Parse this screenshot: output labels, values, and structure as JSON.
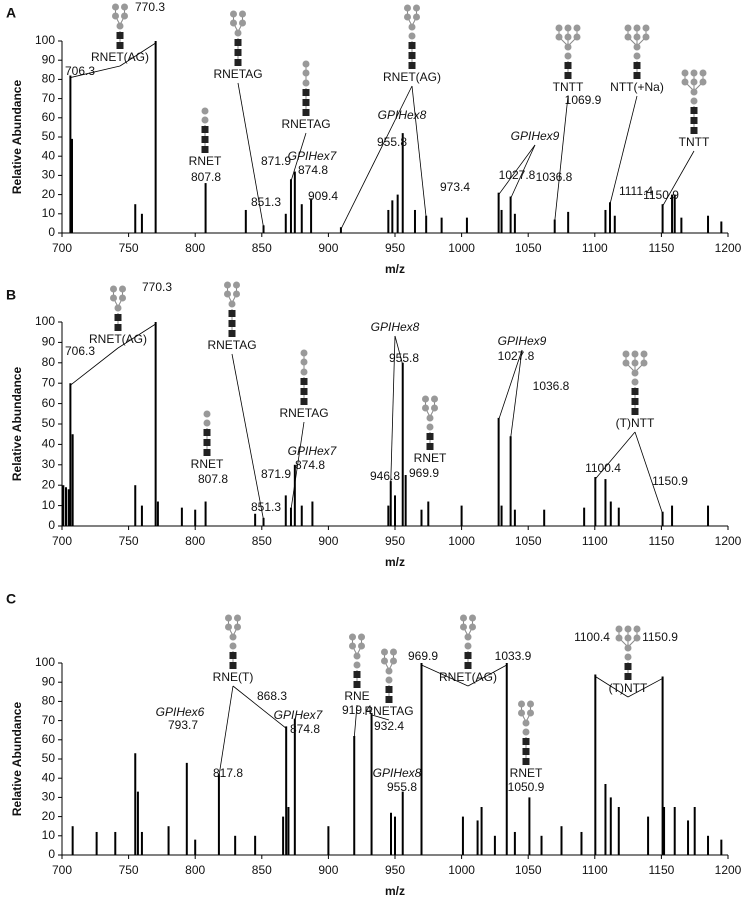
{
  "chart_data": [
    {
      "type": "stem",
      "panel_label": "A",
      "x_label": "m/z",
      "y_label": "Relative Abundance",
      "color": "#000000",
      "xlim": [
        700,
        1200
      ],
      "xticks": [
        700,
        750,
        800,
        850,
        900,
        950,
        1000,
        1050,
        1100,
        1150,
        1200
      ],
      "ylim": [
        0,
        100
      ],
      "yticks": [
        0,
        10,
        20,
        30,
        40,
        50,
        60,
        70,
        80,
        90,
        100
      ],
      "x": [
        706.3,
        770.3,
        807.8,
        851.3,
        871.9,
        874.8,
        909.4,
        955.8,
        973.4,
        1027.8,
        1036.8,
        1069.9,
        1111.4,
        1150.9,
        707.5,
        755,
        760,
        838,
        868,
        880,
        887,
        945,
        948,
        952,
        965,
        985,
        1004,
        1030,
        1040,
        1080,
        1108,
        1115,
        1158,
        1160,
        1165,
        1185,
        1195
      ],
      "values": [
        82,
        100,
        26,
        4,
        28,
        32,
        3,
        52,
        9,
        21,
        19,
        7,
        16,
        15,
        49,
        15,
        10,
        12,
        10,
        15,
        18,
        12,
        17,
        20,
        12,
        8,
        8,
        12,
        10,
        11,
        12,
        9,
        20,
        20,
        8,
        9,
        6
      ],
      "annotations": [
        {
          "text": "RNET(AG)"
        },
        {
          "text": "RNETAG"
        },
        {
          "text": "RNET"
        },
        {
          "text": "RNETAG"
        },
        {
          "text": "GPIHex7",
          "italic": true
        },
        {
          "text": "RNET(AG)"
        },
        {
          "text": "GPIHex8",
          "italic": true
        },
        {
          "text": "GPIHex9",
          "italic": true
        },
        {
          "text": "TNTT"
        },
        {
          "text": "NTT(+Na)"
        },
        {
          "text": "TNTT"
        }
      ]
    },
    {
      "type": "stem",
      "panel_label": "B",
      "x_label": "m/z",
      "y_label": "Relative Abundance",
      "color": "#000000",
      "xlim": [
        700,
        1200
      ],
      "xticks": [
        700,
        750,
        800,
        850,
        900,
        950,
        1000,
        1050,
        1100,
        1150,
        1200
      ],
      "ylim": [
        0,
        100
      ],
      "yticks": [
        0,
        10,
        20,
        30,
        40,
        50,
        60,
        70,
        80,
        90,
        100
      ],
      "x": [
        706.3,
        770.3,
        807.8,
        851.3,
        871.9,
        874.8,
        946.8,
        955.8,
        969.9,
        1027.8,
        1036.8,
        1100.4,
        1150.9,
        701,
        703,
        705,
        708,
        755,
        760,
        772,
        790,
        800,
        845,
        868,
        880,
        888,
        945,
        950,
        958,
        975,
        1000,
        1030,
        1040,
        1062,
        1092,
        1108,
        1112,
        1118,
        1158,
        1185
      ],
      "values": [
        70,
        100,
        12,
        4,
        9,
        30,
        22,
        80,
        8,
        53,
        44,
        24,
        7,
        20,
        19,
        18,
        45,
        20,
        10,
        12,
        9,
        8,
        6,
        15,
        10,
        12,
        10,
        15,
        25,
        12,
        10,
        10,
        8,
        8,
        9,
        23,
        12,
        9,
        10,
        10
      ],
      "annotations": [
        {
          "text": "RNET(AG)"
        },
        {
          "text": "RNETAG"
        },
        {
          "text": "RNET"
        },
        {
          "text": "RNETAG"
        },
        {
          "text": "GPIHex7",
          "italic": true
        },
        {
          "text": "GPIHex8",
          "italic": true
        },
        {
          "text": "RNET"
        },
        {
          "text": "GPIHex9",
          "italic": true
        },
        {
          "text": "(T)NTT"
        }
      ]
    },
    {
      "type": "stem",
      "panel_label": "C",
      "x_label": "m/z",
      "y_label": "Relative Abundance",
      "color": "#000000",
      "xlim": [
        700,
        1200
      ],
      "xticks": [
        700,
        750,
        800,
        850,
        900,
        950,
        1000,
        1050,
        1100,
        1150,
        1200
      ],
      "ylim": [
        0,
        100
      ],
      "yticks": [
        0,
        10,
        20,
        30,
        40,
        50,
        60,
        70,
        80,
        90,
        100
      ],
      "x": [
        793.7,
        817.8,
        868.3,
        874.8,
        919.4,
        932.4,
        955.8,
        969.9,
        1033.9,
        1050.9,
        1100.4,
        1150.9,
        708,
        726,
        740,
        755,
        757,
        760,
        780,
        800,
        830,
        845,
        866,
        870,
        900,
        947,
        950,
        1001,
        1012,
        1015,
        1025,
        1040,
        1060,
        1075,
        1090,
        1108,
        1112,
        1118,
        1140,
        1152,
        1160,
        1170,
        1175,
        1185,
        1195
      ],
      "values": [
        48,
        42,
        67,
        71,
        62,
        74,
        33,
        100,
        100,
        30,
        94,
        93,
        15,
        12,
        12,
        53,
        33,
        12,
        15,
        8,
        10,
        10,
        20,
        25,
        15,
        22,
        20,
        20,
        18,
        25,
        10,
        12,
        10,
        15,
        12,
        37,
        30,
        25,
        20,
        25,
        25,
        18,
        25,
        10,
        8
      ],
      "annotations": [
        {
          "text": "GPIHex6",
          "italic": true
        },
        {
          "text": "RNE(T)"
        },
        {
          "text": "GPIHex7",
          "italic": true
        },
        {
          "text": "RNE"
        },
        {
          "text": "RNETAG"
        },
        {
          "text": "GPIHex8",
          "italic": true
        },
        {
          "text": "RNET(AG)"
        },
        {
          "text": "RNET"
        },
        {
          "text": "(T)NTT"
        }
      ]
    }
  ]
}
